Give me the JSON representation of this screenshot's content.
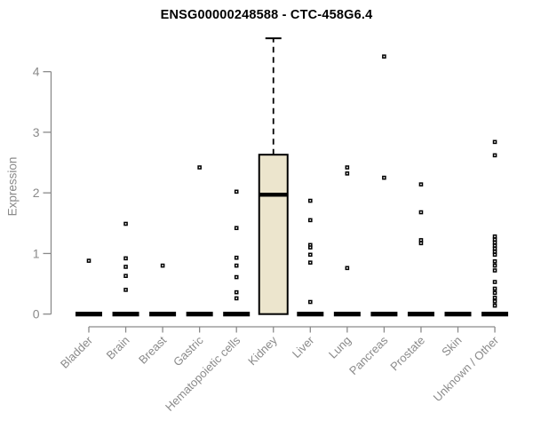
{
  "chart_data": {
    "type": "boxplot",
    "title": "ENSG00000248588 - CTC-458G6.4",
    "ylabel": "Expression",
    "xlabel": "",
    "ylim": [
      0,
      4.6
    ],
    "yticks": [
      0,
      1,
      2,
      3,
      4
    ],
    "grid": false,
    "legend": "none",
    "colors": {
      "axis": "#8a8a8a",
      "tick_label": "#8a8a8a",
      "title": "#000000",
      "box_fill": "#ece5cd",
      "box_border": "#000000",
      "median": "#000000",
      "point": "#000000",
      "background": "#ffffff"
    },
    "categories": [
      "Bladder",
      "Brain",
      "Breast",
      "Gastric",
      "Hematopoietic cells",
      "Kidney",
      "Liver",
      "Lung",
      "Pancreas",
      "Prostate",
      "Skin",
      "Unknown / Other"
    ],
    "boxes": [
      {
        "category": "Bladder",
        "q1": 0,
        "median": 0,
        "q3": 0,
        "whisker_low": 0,
        "whisker_high": 0,
        "outliers": [
          0.88
        ]
      },
      {
        "category": "Brain",
        "q1": 0,
        "median": 0,
        "q3": 0,
        "whisker_low": 0,
        "whisker_high": 0,
        "outliers": [
          1.49,
          0.92,
          0.78,
          0.63,
          0.4
        ]
      },
      {
        "category": "Breast",
        "q1": 0,
        "median": 0,
        "q3": 0,
        "whisker_low": 0,
        "whisker_high": 0,
        "outliers": [
          0.8
        ]
      },
      {
        "category": "Gastric",
        "q1": 0,
        "median": 0,
        "q3": 0,
        "whisker_low": 0,
        "whisker_high": 0,
        "outliers": [
          2.42
        ]
      },
      {
        "category": "Hematopoietic cells",
        "q1": 0,
        "median": 0,
        "q3": 0,
        "whisker_low": 0,
        "whisker_high": 0,
        "outliers": [
          2.02,
          1.42,
          0.93,
          0.8,
          0.61,
          0.36,
          0.26
        ]
      },
      {
        "category": "Kidney",
        "q1": 0,
        "median": 1.97,
        "q3": 2.63,
        "whisker_low": 0,
        "whisker_high": 4.55,
        "outliers": []
      },
      {
        "category": "Liver",
        "q1": 0,
        "median": 0,
        "q3": 0,
        "whisker_low": 0,
        "whisker_high": 0,
        "outliers": [
          1.87,
          1.55,
          1.14,
          1.1,
          0.98,
          0.85,
          0.2
        ]
      },
      {
        "category": "Lung",
        "q1": 0,
        "median": 0,
        "q3": 0,
        "whisker_low": 0,
        "whisker_high": 0,
        "outliers": [
          2.42,
          2.32,
          0.76
        ]
      },
      {
        "category": "Pancreas",
        "q1": 0,
        "median": 0,
        "q3": 0,
        "whisker_low": 0,
        "whisker_high": 0,
        "outliers": [
          4.25,
          2.25
        ]
      },
      {
        "category": "Prostate",
        "q1": 0,
        "median": 0,
        "q3": 0,
        "whisker_low": 0,
        "whisker_high": 0,
        "outliers": [
          2.14,
          1.68,
          1.22,
          1.17
        ]
      },
      {
        "category": "Skin",
        "q1": 0,
        "median": 0,
        "q3": 0,
        "whisker_low": 0,
        "whisker_high": 0,
        "outliers": []
      },
      {
        "category": "Unknown / Other",
        "q1": 0,
        "median": 0,
        "q3": 0,
        "whisker_low": 0,
        "whisker_high": 0,
        "outliers": [
          2.84,
          2.62,
          1.28,
          1.23,
          1.18,
          1.13,
          1.08,
          1.03,
          0.98,
          0.87,
          0.8,
          0.72,
          0.53,
          0.42,
          0.35,
          0.27,
          0.21,
          0.14
        ]
      }
    ]
  }
}
